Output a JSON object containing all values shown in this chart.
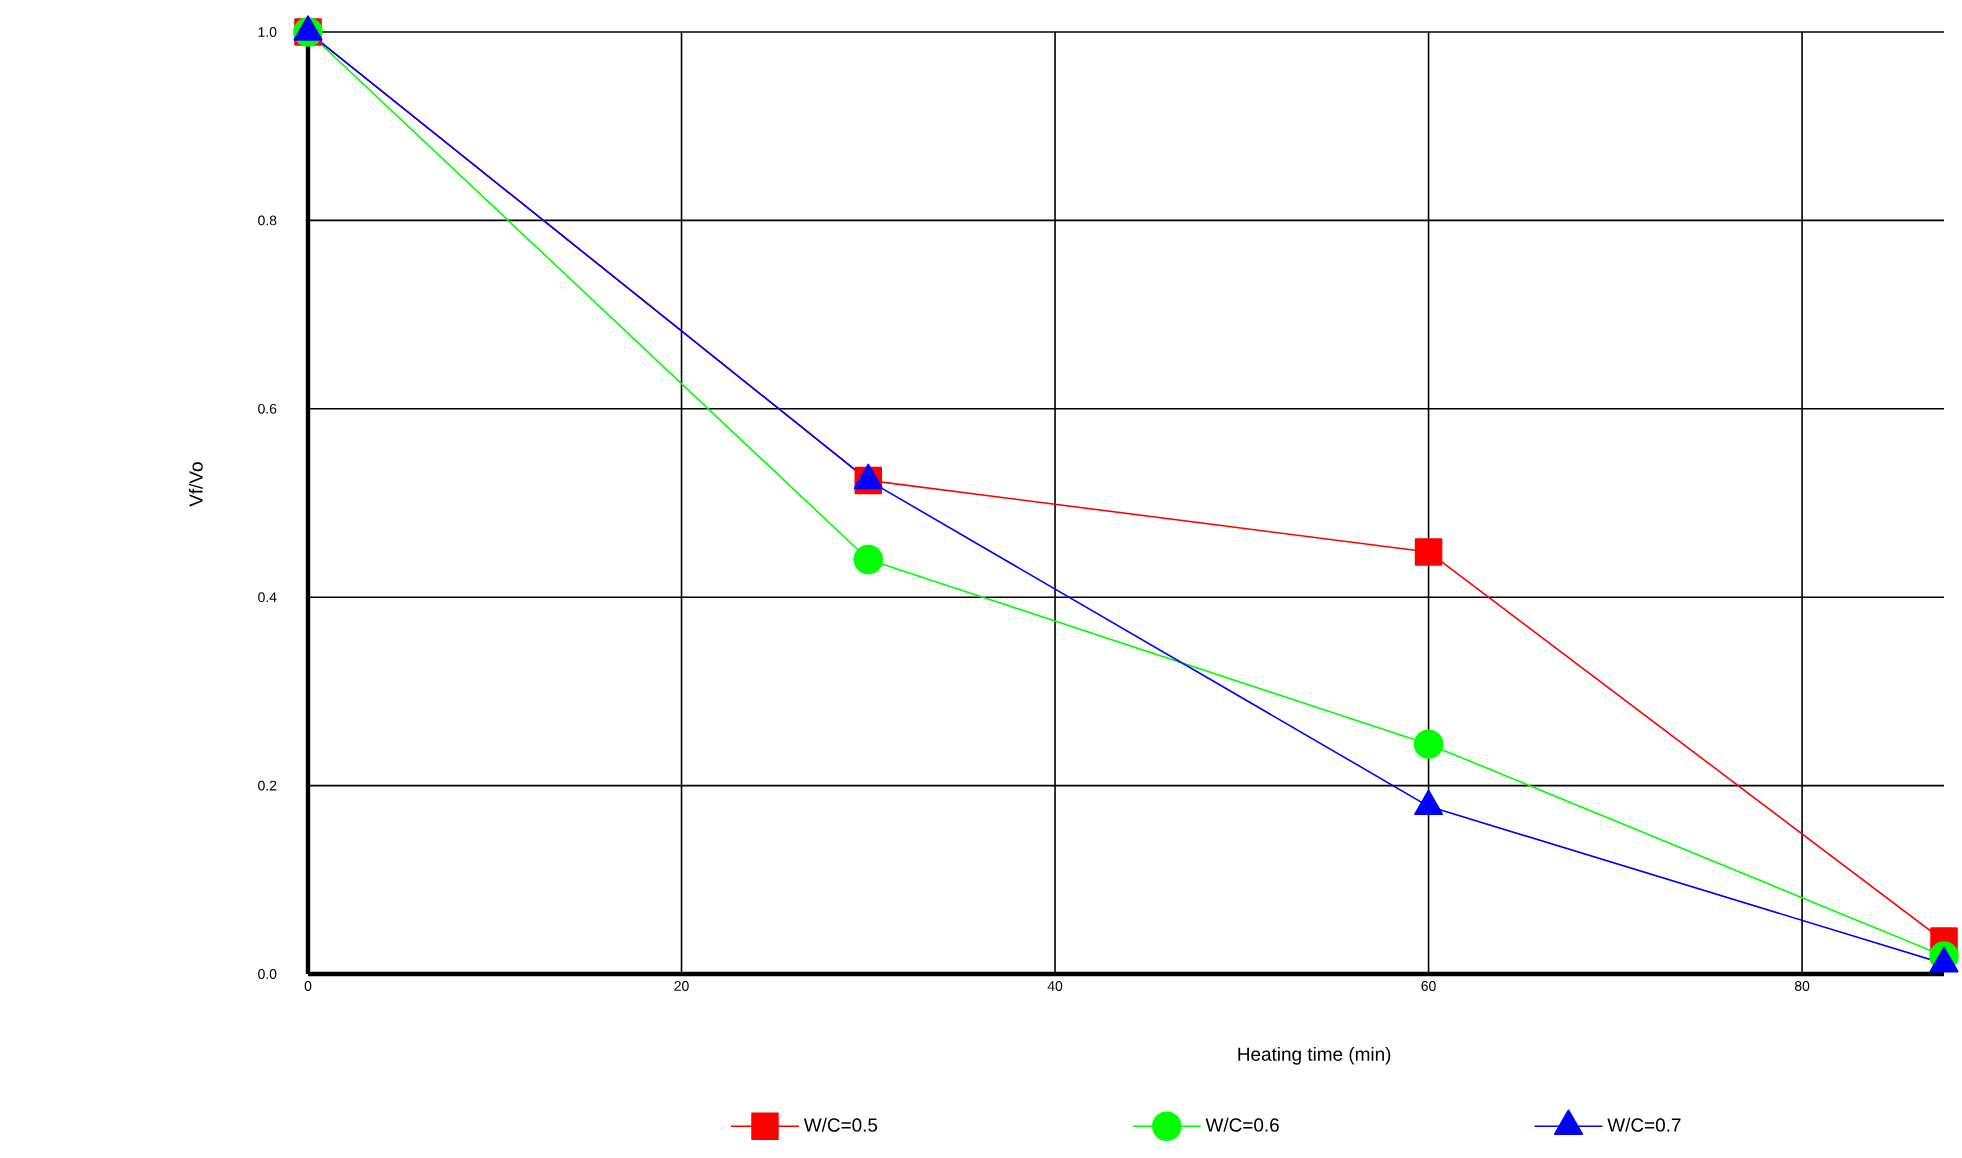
{
  "chart_data": {
    "type": "line",
    "xlabel": "Heating time (min)",
    "ylabel": "Vf/Vo",
    "x": [
      0,
      30,
      60,
      87.6
    ],
    "xlim": [
      0,
      87.6
    ],
    "ylim": [
      0,
      1
    ],
    "xticks": [
      0,
      20,
      40,
      60,
      80
    ],
    "yticks": [
      {
        "value": 0,
        "label": "0.0"
      },
      {
        "value": 0.2,
        "label": "0.2"
      },
      {
        "value": 0.4,
        "label": "0.4"
      },
      {
        "value": 0.6,
        "label": "0.6"
      },
      {
        "value": 0.8,
        "label": "0.8"
      },
      {
        "value": 1,
        "label": "1.0"
      }
    ],
    "grid": true,
    "legend": "bottom",
    "line_style": "solid",
    "series": [
      {
        "name": "W/C=0.5",
        "color": "#ff0000",
        "marker": "square",
        "values": [
          1.0,
          0.524,
          0.448,
          0.035
        ]
      },
      {
        "name": "W/C=0.6",
        "color": "#00ff00",
        "marker": "circle",
        "values": [
          1.0,
          0.44,
          0.244,
          0.019
        ]
      },
      {
        "name": "W/C=0.7",
        "color": "#0000ff",
        "marker": "triangle",
        "values": [
          1.0,
          0.524,
          0.178,
          0.011
        ]
      }
    ]
  }
}
